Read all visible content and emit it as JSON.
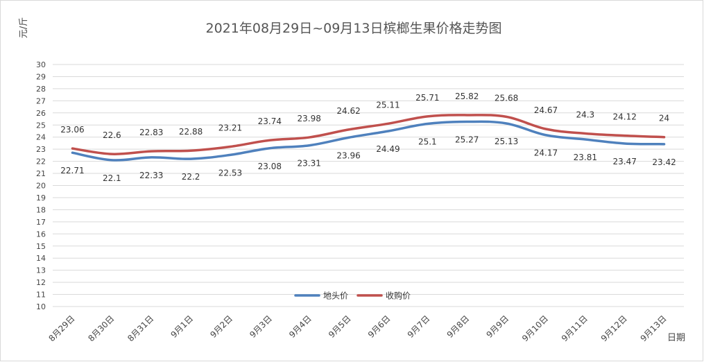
{
  "chart_data": {
    "type": "line",
    "title": "2021年08月29日~09月13日槟榔生果价格走势图",
    "ylabel": "元/斤",
    "xlabel": "日期",
    "ylim": [
      10,
      30
    ],
    "yticks": [
      10,
      11,
      12,
      13,
      14,
      15,
      16,
      17,
      18,
      19,
      20,
      21,
      22,
      23,
      24,
      25,
      26,
      27,
      28,
      29,
      30
    ],
    "grid": true,
    "legend_position": "bottom-center",
    "categories": [
      "8月29日",
      "8月30日",
      "8月31日",
      "9月1日",
      "9月2日",
      "9月3日",
      "9月4日",
      "9月5日",
      "9月6日",
      "9月7日",
      "9月8日",
      "9月9日",
      "9月10日",
      "9月11日",
      "9月12日",
      "9月13日"
    ],
    "series": [
      {
        "name": "地头价",
        "color": "#4F81BD",
        "values": [
          22.71,
          22.1,
          22.33,
          22.2,
          22.53,
          23.08,
          23.31,
          23.96,
          24.49,
          25.1,
          25.27,
          25.13,
          24.17,
          23.81,
          23.47,
          23.42
        ],
        "labels": [
          "22.71",
          "22.1",
          "22.33",
          "22.2",
          "22.53",
          "23.08",
          "23.31",
          "23.96",
          "24.49",
          "25.1",
          "25.27",
          "25.13",
          "24.17",
          "23.81",
          "23.47",
          "23.42"
        ],
        "label_position": "below"
      },
      {
        "name": "收购价",
        "color": "#C0504D",
        "values": [
          23.06,
          22.6,
          22.83,
          22.88,
          23.21,
          23.74,
          23.98,
          24.62,
          25.11,
          25.71,
          25.82,
          25.68,
          24.67,
          24.3,
          24.12,
          24
        ],
        "labels": [
          "23.06",
          "22.6",
          "22.83",
          "22.88",
          "23.21",
          "23.74",
          "23.98",
          "24.62",
          "25.11",
          "25.71",
          "25.82",
          "25.68",
          "24.67",
          "24.3",
          "24.12",
          "24"
        ],
        "label_position": "above"
      }
    ]
  },
  "colors": {
    "grid": "#D9D9D9",
    "border": "#D9D9D9"
  }
}
